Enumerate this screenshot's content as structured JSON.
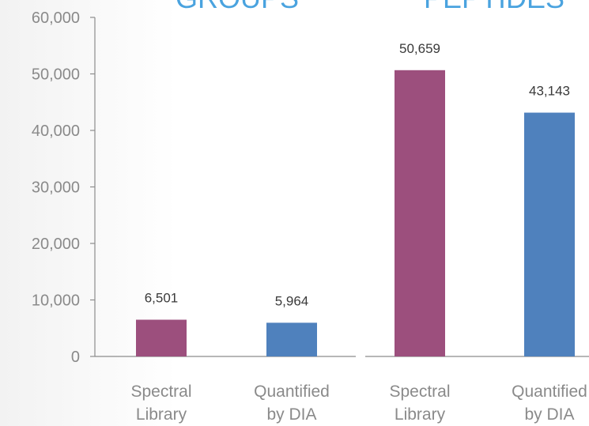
{
  "colors": {
    "library": "#9c4f7d",
    "dia": "#4f81bd",
    "title": "#4aa3df"
  },
  "chart_data": [
    {
      "type": "bar",
      "title": "GROUPS",
      "categories": [
        [
          "Spectral",
          "Library"
        ],
        [
          "Quantified",
          "by DIA"
        ]
      ],
      "values": [
        6501,
        5964
      ],
      "data_labels": [
        "6,501",
        "5,964"
      ],
      "ylim": [
        0,
        60000
      ],
      "yticks": [
        "0",
        "10,000",
        "20,000",
        "30,000",
        "40,000",
        "50,000",
        "60,000"
      ],
      "grid": false,
      "legend": "none"
    },
    {
      "type": "bar",
      "title": "PEPTIDES",
      "categories": [
        [
          "Spectral",
          "Library"
        ],
        [
          "Quantified",
          "by DIA"
        ]
      ],
      "values": [
        50659,
        43143
      ],
      "data_labels": [
        "50,659",
        "43,143"
      ],
      "ylim": [
        0,
        60000
      ],
      "grid": false,
      "legend": "none"
    }
  ]
}
